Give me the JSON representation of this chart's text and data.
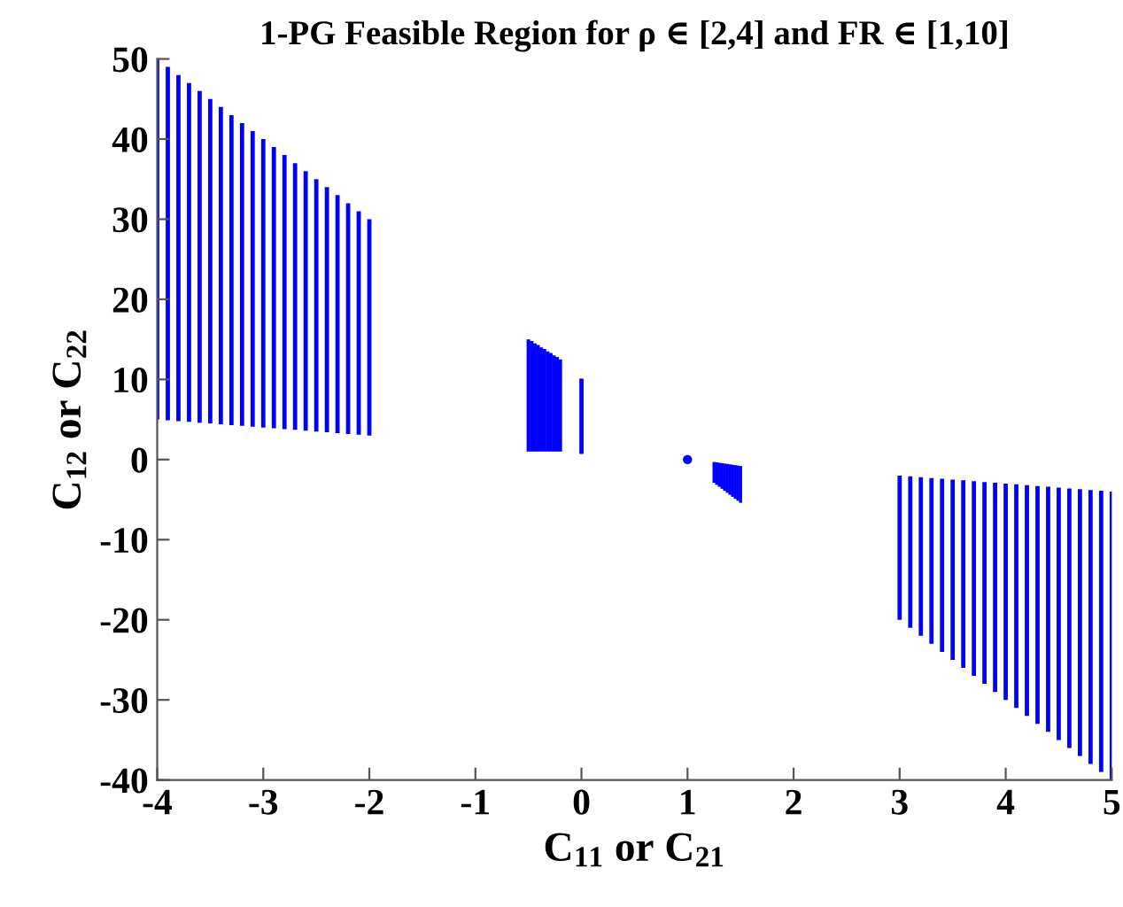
{
  "chart_data": {
    "type": "bar",
    "title": "1-PG Feasible Region for ρ ∈ [2,4] and FR ∈ [1,10]",
    "xlabel": "C$_{11}$ or C$_{21}$",
    "ylabel": "C$_{12}$ or C$_{22}$",
    "xlim": [
      -4,
      5
    ],
    "ylim": [
      -40,
      50
    ],
    "xticks": [
      -4,
      -3,
      -2,
      -1,
      0,
      1,
      2,
      3,
      4,
      5
    ],
    "yticks": [
      -40,
      -30,
      -20,
      -10,
      0,
      10,
      20,
      30,
      40,
      50
    ],
    "grid": false,
    "series": [
      {
        "color": "#0000ff",
        "x": [
          -4,
          -3.9,
          -3.8,
          -3.7,
          -3.6,
          -3.5,
          -3.4,
          -3.3,
          -3.2,
          -3.1,
          -3,
          -2.9,
          -2.8,
          -2.7,
          -2.6,
          -2.5,
          -2.4,
          -2.3,
          -2.2,
          -2.1,
          -2
        ],
        "base": [
          5,
          4.9,
          4.8,
          4.7,
          4.6,
          4.5,
          4.4,
          4.3,
          4.2,
          4.1,
          4,
          3.9,
          3.8,
          3.7,
          3.6,
          3.5,
          3.4,
          3.3,
          3.2,
          3.1,
          3
        ],
        "values": [
          45,
          44.1,
          43.2,
          42.3,
          41.4,
          40.5,
          39.6,
          38.7,
          37.8,
          36.9,
          36,
          35.1,
          34.2,
          33.3,
          32.4,
          31.5,
          30.6,
          29.7,
          28.8,
          27.9,
          27
        ]
      },
      {
        "color": "#0000ff",
        "x": [
          -0.5,
          -0.47,
          -0.44,
          -0.41,
          -0.38,
          -0.35,
          -0.32,
          -0.29,
          -0.26,
          -0.23,
          -0.2
        ],
        "base": [
          1,
          1,
          1,
          1,
          1,
          1,
          1,
          1,
          1,
          1,
          1
        ],
        "values": [
          14,
          13.8,
          13.5,
          13.3,
          13,
          12.8,
          12.5,
          12.3,
          12,
          11.8,
          11.5
        ]
      },
      {
        "color": "#0000ff",
        "x": [
          0
        ],
        "base": [
          0.7
        ],
        "values": [
          9.4
        ]
      },
      {
        "type": "scatter",
        "color": "#0000ff",
        "x": [
          1
        ],
        "values": [
          0
        ]
      },
      {
        "color": "#0000ff",
        "x": [
          1.25,
          1.275,
          1.3,
          1.325,
          1.35,
          1.375,
          1.4,
          1.425,
          1.45,
          1.475,
          1.5
        ],
        "base": [
          -2.9,
          -3.15,
          -3.4,
          -3.65,
          -3.9,
          -4.15,
          -4.4,
          -4.65,
          -4.9,
          -5.15,
          -5.4
        ],
        "values": [
          2.6,
          2.8,
          3,
          3.2,
          3.4,
          3.6,
          3.8,
          4,
          4.2,
          4.4,
          4.6
        ]
      },
      {
        "color": "#0000ff",
        "x": [
          3,
          3.1,
          3.2,
          3.3,
          3.4,
          3.5,
          3.6,
          3.7,
          3.8,
          3.9,
          4,
          4.1,
          4.2,
          4.3,
          4.4,
          4.5,
          4.6,
          4.7,
          4.8,
          4.9,
          5
        ],
        "base": [
          -20,
          -21,
          -22,
          -23,
          -24,
          -25,
          -26,
          -27,
          -28,
          -29,
          -30,
          -31,
          -32,
          -33,
          -34,
          -35,
          -36,
          -37,
          -38,
          -39,
          -40
        ],
        "values": [
          18,
          18.9,
          19.8,
          20.7,
          21.6,
          22.5,
          23.4,
          24.3,
          25.2,
          26.1,
          27,
          27.9,
          28.8,
          29.7,
          30.6,
          31.5,
          32.4,
          33.3,
          34.2,
          35.1,
          36
        ]
      }
    ]
  }
}
